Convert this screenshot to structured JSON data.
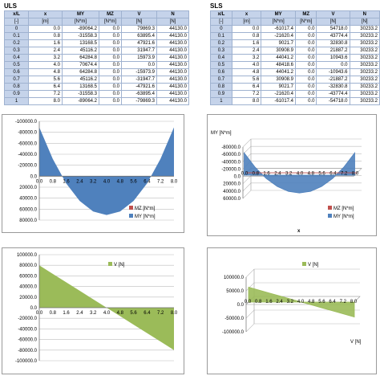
{
  "uls": {
    "title": "ULS",
    "headers": [
      "x/L",
      "x",
      "MY",
      "MZ",
      "V",
      "N"
    ],
    "units": [
      "[-]",
      "[m]",
      "[N*m]",
      "[N*m]",
      "[N]",
      "[N]"
    ],
    "rows": [
      [
        "0",
        "0.0",
        "-89064.2",
        "0.0",
        "79869.3",
        "44130.0"
      ],
      [
        "0.1",
        "0.8",
        "-31558.3",
        "0.0",
        "63895.4",
        "44130.0"
      ],
      [
        "0.2",
        "1.6",
        "13168.5",
        "0.0",
        "47921.6",
        "44130.0"
      ],
      [
        "0.3",
        "2.4",
        "45116.2",
        "0.0",
        "31947.7",
        "44130.0"
      ],
      [
        "0.4",
        "3.2",
        "64284.8",
        "0.0",
        "15973.9",
        "44130.0"
      ],
      [
        "0.5",
        "4.0",
        "70674.4",
        "0.0",
        "0.0",
        "44130.0"
      ],
      [
        "0.6",
        "4.8",
        "64284.8",
        "0.0",
        "-15973.9",
        "44130.0"
      ],
      [
        "0.7",
        "5.6",
        "45116.2",
        "0.0",
        "-31947.7",
        "44130.0"
      ],
      [
        "0.8",
        "6.4",
        "13168.5",
        "0.0",
        "-47921.6",
        "44130.0"
      ],
      [
        "0.9",
        "7.2",
        "-31558.3",
        "0.0",
        "-63895.4",
        "44130.0"
      ],
      [
        "1",
        "8.0",
        "-89064.2",
        "0.0",
        "-79869.3",
        "44130.0"
      ]
    ]
  },
  "sls": {
    "title": "SLS",
    "headers": [
      "x/L",
      "x",
      "MY",
      "MZ",
      "V",
      "N"
    ],
    "units": [
      "[-]",
      "[m]",
      "[N*m]",
      "[N*m]",
      "[N]",
      "[N]"
    ],
    "rows": [
      [
        "0",
        "0.0",
        "-61017.4",
        "0.0",
        "54718.0",
        "30233.2"
      ],
      [
        "0.1",
        "0.8",
        "-21620.4",
        "0.0",
        "43774.4",
        "30233.2"
      ],
      [
        "0.2",
        "1.6",
        "9021.7",
        "0.0",
        "32830.8",
        "30233.2"
      ],
      [
        "0.3",
        "2.4",
        "30908.9",
        "0.0",
        "21887.2",
        "30233.2"
      ],
      [
        "0.4",
        "3.2",
        "44041.2",
        "0.0",
        "10943.6",
        "30233.2"
      ],
      [
        "0.5",
        "4.0",
        "48418.6",
        "0.0",
        "0.0",
        "30233.2"
      ],
      [
        "0.6",
        "4.8",
        "44041.2",
        "0.0",
        "-10943.6",
        "30233.2"
      ],
      [
        "0.7",
        "5.6",
        "30908.9",
        "0.0",
        "-21887.2",
        "30233.2"
      ],
      [
        "0.8",
        "6.4",
        "9021.7",
        "0.0",
        "-32830.8",
        "30233.2"
      ],
      [
        "0.9",
        "7.2",
        "-21620.4",
        "0.0",
        "-43774.4",
        "30233.2"
      ],
      [
        "1",
        "8.0",
        "-61017.4",
        "0.0",
        "-54718.0",
        "30233.2"
      ]
    ]
  },
  "chart_data": [
    {
      "type": "area",
      "id": "uls-moment",
      "categories": [
        "0.0",
        "0.8",
        "1.6",
        "2.4",
        "3.2",
        "4.0",
        "4.8",
        "5.6",
        "6.4",
        "7.2",
        "8.0"
      ],
      "x": [
        0.0,
        0.8,
        1.6,
        2.4,
        3.2,
        4.0,
        4.8,
        5.6,
        6.4,
        7.2,
        8.0
      ],
      "series": [
        {
          "name": "MZ [N*m]",
          "values": [
            0,
            0,
            0,
            0,
            0,
            0,
            0,
            0,
            0,
            0,
            0
          ],
          "color": "#c0504d"
        },
        {
          "name": "MY [N*m]",
          "values": [
            -89064.2,
            -31558.3,
            13168.5,
            45116.2,
            64284.8,
            70674.4,
            64284.8,
            45116.2,
            13168.5,
            -31558.3,
            -89064.2
          ],
          "color": "#4f81bd"
        }
      ],
      "y_ticks": [
        "-100000.0",
        "-80000.0",
        "-60000.0",
        "-40000.0",
        "-20000.0",
        "0.0",
        "20000.0",
        "40000.0",
        "60000.0",
        "80000.0"
      ],
      "ylim": [
        -100000,
        80000
      ],
      "y_reversed": true,
      "legend": "bottom-right"
    },
    {
      "type": "area",
      "id": "sls-moment-3d",
      "categories": [
        "0.0",
        "0.8",
        "1.6",
        "2.4",
        "3.2",
        "4.0",
        "4.8",
        "5.6",
        "6.4",
        "7.2",
        "8.0"
      ],
      "x": [
        0.0,
        0.8,
        1.6,
        2.4,
        3.2,
        4.0,
        4.8,
        5.6,
        6.4,
        7.2,
        8.0
      ],
      "series": [
        {
          "name": "MZ [N*m]",
          "values": [
            0,
            0,
            0,
            0,
            0,
            0,
            0,
            0,
            0,
            0,
            0
          ],
          "color": "#c0504d"
        },
        {
          "name": "MY [N*m]",
          "values": [
            -61017.4,
            -21620.4,
            9021.7,
            30908.9,
            44041.2,
            48418.6,
            44041.2,
            30908.9,
            9021.7,
            -21620.4,
            -61017.4
          ],
          "color": "#4f81bd"
        }
      ],
      "ylabel": "MY [N*m]",
      "xlabel": "x",
      "y_ticks": [
        "-80000.0",
        "-60000.0",
        "-40000.0",
        "-20000.0",
        "0.0",
        "20000.0",
        "40000.0",
        "60000.0"
      ],
      "ylim": [
        -80000,
        60000
      ],
      "y_reversed": true,
      "legend": "bottom-right"
    },
    {
      "type": "area",
      "id": "uls-shear",
      "categories": [
        "0.0",
        "0.8",
        "1.6",
        "2.4",
        "3.2",
        "4.0",
        "4.8",
        "5.6",
        "6.4",
        "7.2",
        "8.0"
      ],
      "x": [
        0.0,
        0.8,
        1.6,
        2.4,
        3.2,
        4.0,
        4.8,
        5.6,
        6.4,
        7.2,
        8.0
      ],
      "series": [
        {
          "name": "V [N]",
          "values": [
            79869.3,
            63895.4,
            47921.6,
            31947.7,
            15973.9,
            0.0,
            -15973.9,
            -31947.7,
            -47921.6,
            -63895.4,
            -79869.3
          ],
          "color": "#9bbb59"
        }
      ],
      "y_ticks": [
        "100000.0",
        "80000.0",
        "60000.0",
        "40000.0",
        "20000.0",
        "0.0",
        "-20000.0",
        "-40000.0",
        "-60000.0",
        "-80000.0",
        "-100000.0"
      ],
      "ylim": [
        -100000,
        100000
      ],
      "legend": "top-center"
    },
    {
      "type": "area",
      "id": "sls-shear-3d",
      "categories": [
        "0.0",
        "0.8",
        "1.6",
        "2.4",
        "3.2",
        "4.0",
        "4.8",
        "5.6",
        "6.4",
        "7.2",
        "8.0"
      ],
      "x": [
        0.0,
        0.8,
        1.6,
        2.4,
        3.2,
        4.0,
        4.8,
        5.6,
        6.4,
        7.2,
        8.0
      ],
      "series": [
        {
          "name": "V [N]",
          "values": [
            54718.0,
            43774.4,
            32830.8,
            21887.2,
            10943.6,
            0.0,
            -10943.6,
            -21887.2,
            -32830.8,
            -43774.4,
            -54718.0
          ],
          "color": "#9bbb59"
        }
      ],
      "y_ticks": [
        "100000.0",
        "50000.0",
        "0.0",
        "-50000.0",
        "-100000.0"
      ],
      "ylim": [
        -100000,
        100000
      ],
      "legend": "top-center"
    }
  ]
}
